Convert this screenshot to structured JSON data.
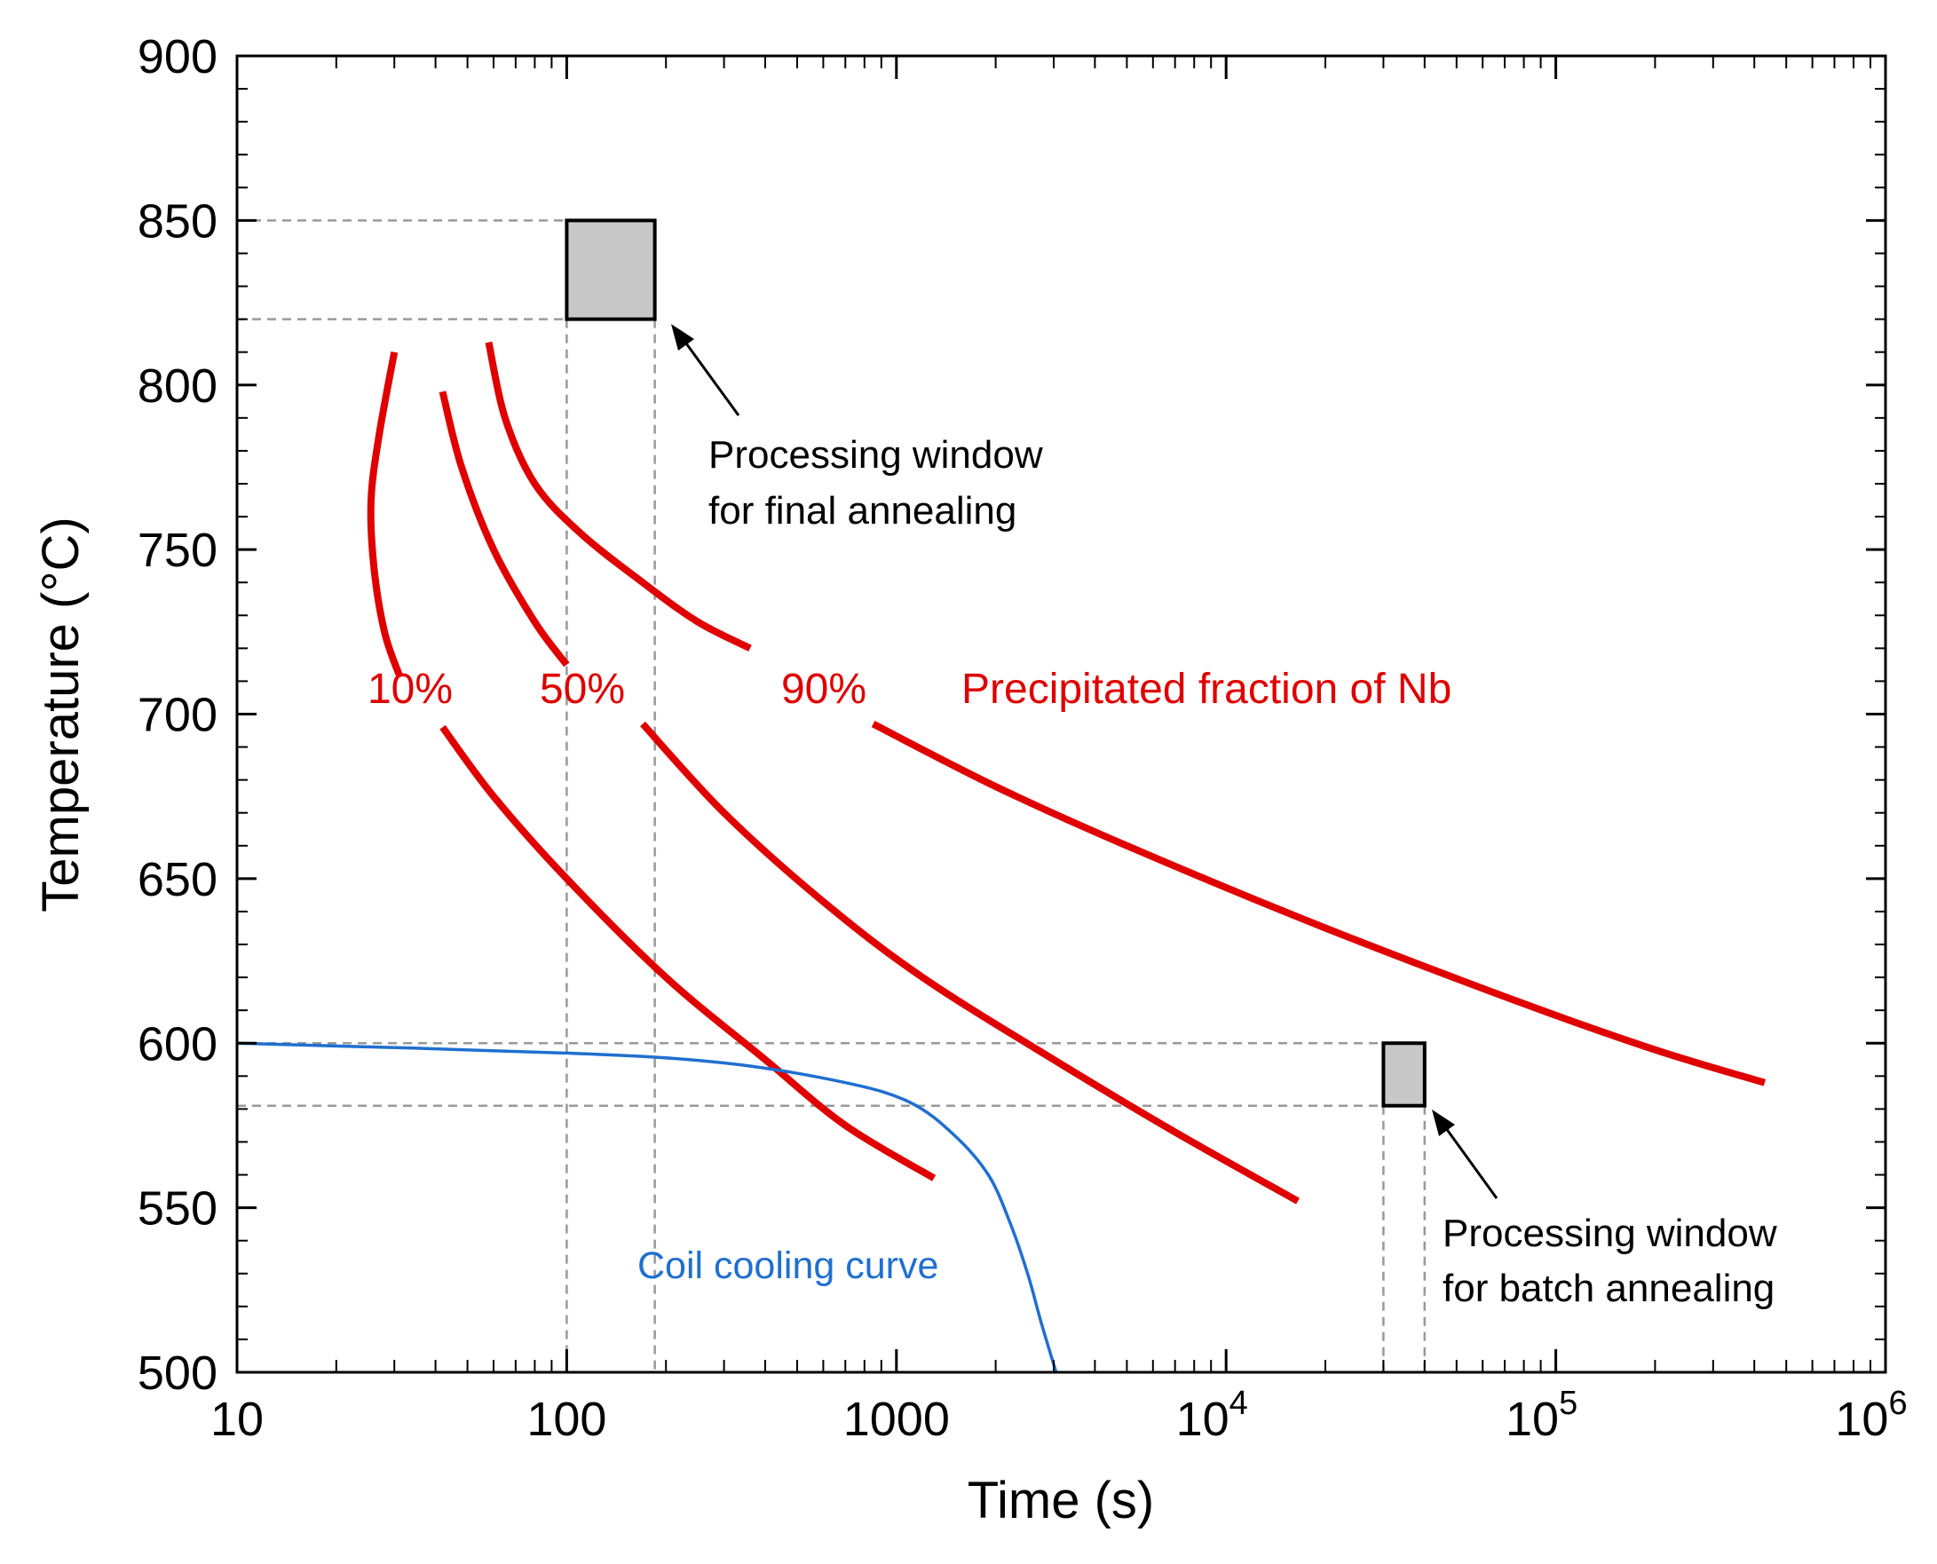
{
  "chart_data": {
    "type": "line",
    "title": "",
    "xlabel": "Time (s)",
    "ylabel": "Temperature (°C)",
    "xscale": "log",
    "xlim": [
      10,
      1000000
    ],
    "ylim": [
      500,
      900
    ],
    "grid": false,
    "x_ticks": [
      {
        "value": 10,
        "label": "10"
      },
      {
        "value": 100,
        "label": "100"
      },
      {
        "value": 1000,
        "label": "1000"
      },
      {
        "value": 10000,
        "base": "10",
        "exp": "4"
      },
      {
        "value": 100000,
        "base": "10",
        "exp": "5"
      },
      {
        "value": 1000000,
        "base": "10",
        "exp": "6"
      }
    ],
    "y_ticks": [
      500,
      550,
      600,
      650,
      700,
      750,
      800,
      850,
      900
    ],
    "series": [
      {
        "name": "10%",
        "color": "#e00000",
        "segments": [
          [
            [
              30,
              810
            ],
            [
              27,
              785
            ],
            [
              25.5,
              765
            ],
            [
              26,
              745
            ],
            [
              28,
              725
            ],
            [
              31,
              712
            ]
          ],
          [
            [
              42,
              696
            ],
            [
              60,
              675
            ],
            [
              100,
              650
            ],
            [
              200,
              620
            ],
            [
              400,
              595
            ],
            [
              700,
              575
            ],
            [
              1300,
              559
            ]
          ]
        ]
      },
      {
        "name": "50%",
        "color": "#e00000",
        "segments": [
          [
            [
              42,
              798
            ],
            [
              48,
              775
            ],
            [
              60,
              750
            ],
            [
              80,
              728
            ],
            [
              100,
              715
            ]
          ],
          [
            [
              170,
              697
            ],
            [
              300,
              670
            ],
            [
              600,
              643
            ],
            [
              1200,
              620
            ],
            [
              3000,
              595
            ],
            [
              7000,
              573
            ],
            [
              16500,
              552
            ]
          ]
        ]
      },
      {
        "name": "90%",
        "color": "#e00000",
        "segments": [
          [
            [
              58,
              813
            ],
            [
              65,
              790
            ],
            [
              80,
              770
            ],
            [
              110,
              755
            ],
            [
              170,
              740
            ],
            [
              250,
              728
            ],
            [
              360,
              720
            ]
          ],
          [
            [
              850,
              697
            ],
            [
              2000,
              678
            ],
            [
              5000,
              660
            ],
            [
              20000,
              635
            ],
            [
              80000,
              612
            ],
            [
              200000,
              598
            ],
            [
              430000,
              588
            ]
          ]
        ]
      },
      {
        "name": "Coil cooling curve",
        "color": "#1f6fd0",
        "points": [
          [
            10,
            600
          ],
          [
            100,
            597
          ],
          [
            300,
            594
          ],
          [
            700,
            588
          ],
          [
            1100,
            582
          ],
          [
            1500,
            572
          ],
          [
            1900,
            560
          ],
          [
            2200,
            546
          ],
          [
            2500,
            530
          ],
          [
            2750,
            515
          ],
          [
            3050,
            500
          ]
        ]
      }
    ],
    "windows": [
      {
        "name": "final annealing",
        "t": [
          100,
          185
        ],
        "T": [
          820,
          850
        ]
      },
      {
        "name": "batch annealing",
        "t": [
          30000,
          40000
        ],
        "T": [
          581,
          600
        ]
      }
    ],
    "curve_labels": [
      "10%",
      "50%",
      "90%"
    ],
    "precipitate_label": "Precipitated fraction of Nb",
    "cooling_label": "Coil cooling curve",
    "annotation_final": [
      "Processing window",
      "for final annealing"
    ],
    "annotation_batch": [
      "Processing window",
      "for batch annealing"
    ],
    "colors": {
      "precipitate": "#e00000",
      "cooling": "#1f6fd0",
      "window_fill": "#c8c8c8",
      "guide": "#999999",
      "axis": "#000000"
    }
  }
}
